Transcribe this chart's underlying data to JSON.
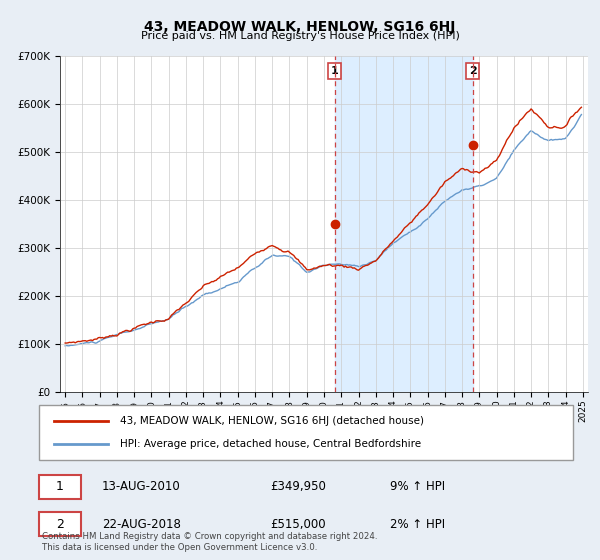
{
  "title": "43, MEADOW WALK, HENLOW, SG16 6HJ",
  "subtitle": "Price paid vs. HM Land Registry's House Price Index (HPI)",
  "legend_line1": "43, MEADOW WALK, HENLOW, SG16 6HJ (detached house)",
  "legend_line2": "HPI: Average price, detached house, Central Bedfordshire",
  "annotation1_label": "1",
  "annotation1_date": "13-AUG-2010",
  "annotation1_price": "£349,950",
  "annotation1_hpi": "9% ↑ HPI",
  "annotation2_label": "2",
  "annotation2_date": "22-AUG-2018",
  "annotation2_price": "£515,000",
  "annotation2_hpi": "2% ↑ HPI",
  "footnote": "Contains HM Land Registry data © Crown copyright and database right 2024.\nThis data is licensed under the Open Government Licence v3.0.",
  "hpi_color": "#6699cc",
  "price_color": "#cc2200",
  "dashed_line_color": "#cc4444",
  "shade_color": "#ddeeff",
  "background_color": "#e8eef5",
  "plot_bg_color": "#ffffff",
  "ylim": [
    0,
    700000
  ],
  "yticks": [
    0,
    100000,
    200000,
    300000,
    400000,
    500000,
    600000,
    700000
  ],
  "ytick_labels": [
    "£0",
    "£100K",
    "£200K",
    "£300K",
    "£400K",
    "£500K",
    "£600K",
    "£700K"
  ],
  "sale1_x": 2010.62,
  "sale1_y": 349950,
  "sale2_x": 2018.62,
  "sale2_y": 515000,
  "xtick_years": [
    1995,
    1996,
    1997,
    1998,
    1999,
    2000,
    2001,
    2002,
    2003,
    2004,
    2005,
    2006,
    2007,
    2008,
    2009,
    2010,
    2011,
    2012,
    2013,
    2014,
    2015,
    2016,
    2017,
    2018,
    2019,
    2020,
    2021,
    2022,
    2023,
    2024,
    2025
  ]
}
